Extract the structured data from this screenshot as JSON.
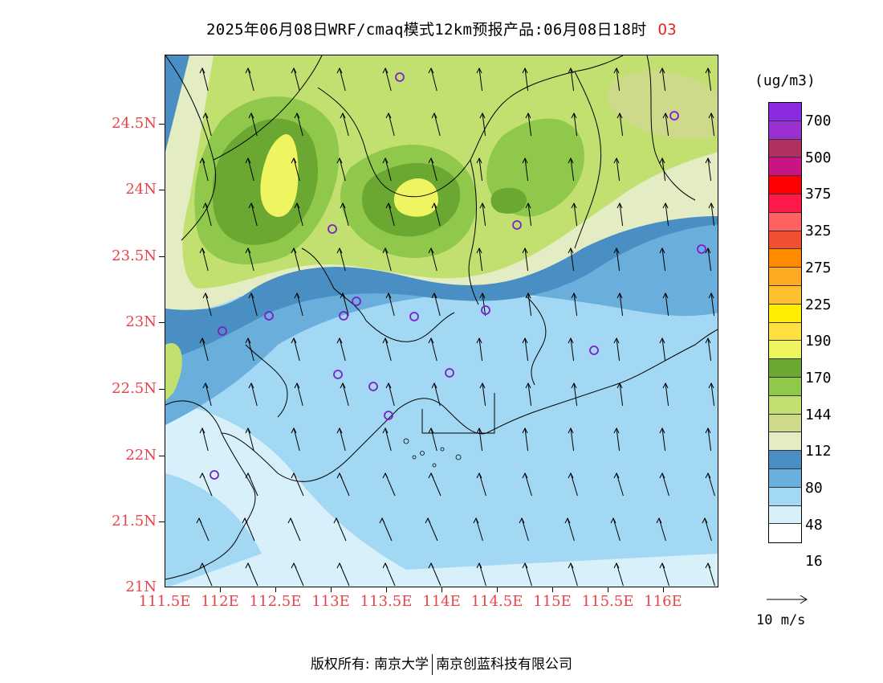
{
  "title": {
    "main": "2025年06月08日WRF/cmaq模式12km预报产品:06月08日18时",
    "pollutant": "O3"
  },
  "map": {
    "lat_labels": [
      "24.5N",
      "24N",
      "23.5N",
      "23N",
      "22.5N",
      "22N",
      "21.5N",
      "21N"
    ],
    "lon_labels": [
      "111.5E",
      "112E",
      "112.5E",
      "113E",
      "113.5E",
      "114E",
      "114.5E",
      "115E",
      "115.5E",
      "116E"
    ],
    "station_marker_color": "#7b1fc9",
    "coastline_color": "#000000"
  },
  "legend": {
    "unit": "(ug/m3)",
    "colors": [
      "#8a2be2",
      "#9b30d0",
      "#b03060",
      "#c71585",
      "#ff0000",
      "#ff1a4a",
      "#ff6060",
      "#f05030",
      "#ff8c00",
      "#ffaa22",
      "#ffc030",
      "#ffee00",
      "#ffe040",
      "#eef560",
      "#6aa832",
      "#8fc84a",
      "#c2e070",
      "#cfd98a",
      "#e3ecc2",
      "#4a8fc4",
      "#6aaedc",
      "#a2d8f4",
      "#d8f0fa",
      "#ffffff"
    ],
    "labels": [
      "700",
      "500",
      "375",
      "325",
      "275",
      "225",
      "190",
      "170",
      "144",
      "112",
      "80",
      "48",
      "16"
    ]
  },
  "wind_vector": {
    "label": "10 m/s"
  },
  "footer": {
    "copyright": "版权所有: 南京大学",
    "company": "南京创蓝科技有限公司"
  }
}
